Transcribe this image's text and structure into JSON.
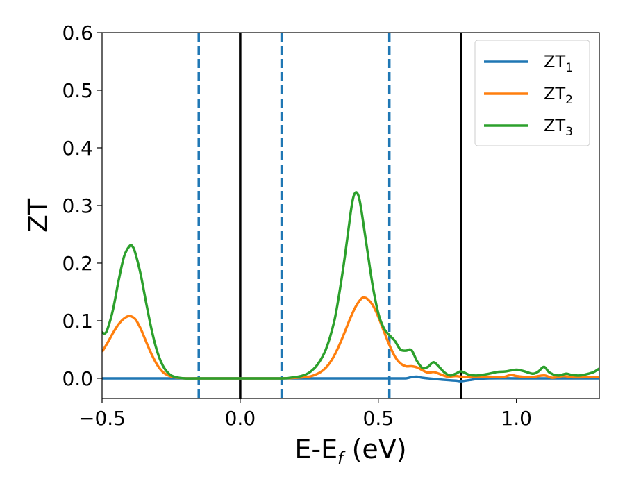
{
  "chart_data": {
    "type": "line",
    "xlabel": {
      "main": "E-E",
      "sub": "f",
      "rest": " (eV)"
    },
    "ylabel": "ZT",
    "xlim": [
      -0.5,
      1.3
    ],
    "ylim": [
      -0.035,
      0.6
    ],
    "x_ticks": [
      -0.5,
      0.0,
      0.5,
      1.0
    ],
    "x_tick_labels": [
      "−0.5",
      "0.0",
      "0.5",
      "1.0"
    ],
    "y_ticks": [
      0.0,
      0.1,
      0.2,
      0.3,
      0.4,
      0.5,
      0.6
    ],
    "y_tick_labels": [
      "0.0",
      "0.1",
      "0.2",
      "0.3",
      "0.4",
      "0.5",
      "0.6"
    ],
    "grid": false,
    "legend_position": "top-right",
    "vertical_lines": [
      {
        "x": -0.15,
        "style": "dashed",
        "color": "#1f77b4"
      },
      {
        "x": 0.0,
        "style": "solid",
        "color": "#000000"
      },
      {
        "x": 0.15,
        "style": "dashed",
        "color": "#1f77b4"
      },
      {
        "x": 0.54,
        "style": "dashed",
        "color": "#1f77b4"
      },
      {
        "x": 0.8,
        "style": "solid",
        "color": "#000000"
      }
    ],
    "series": [
      {
        "name": "ZT",
        "name_sub": "1",
        "color": "#1f77b4",
        "points": [
          [
            -0.5,
            0.0
          ],
          [
            -0.3,
            0.0
          ],
          [
            0.0,
            0.0
          ],
          [
            0.3,
            0.0
          ],
          [
            0.5,
            0.0
          ],
          [
            0.58,
            0.0
          ],
          [
            0.6,
            0.0
          ],
          [
            0.62,
            0.002
          ],
          [
            0.64,
            0.003
          ],
          [
            0.66,
            0.001
          ],
          [
            0.7,
            -0.001
          ],
          [
            0.75,
            -0.003
          ],
          [
            0.78,
            -0.004
          ],
          [
            0.8,
            -0.005
          ],
          [
            0.83,
            -0.003
          ],
          [
            0.86,
            -0.001
          ],
          [
            0.9,
            0.0
          ],
          [
            1.0,
            0.0
          ],
          [
            1.1,
            0.0
          ],
          [
            1.2,
            0.0
          ],
          [
            1.3,
            0.0
          ]
        ]
      },
      {
        "name": "ZT",
        "name_sub": "2",
        "color": "#ff7f0e",
        "points": [
          [
            -0.5,
            0.046
          ],
          [
            -0.48,
            0.062
          ],
          [
            -0.46,
            0.079
          ],
          [
            -0.44,
            0.094
          ],
          [
            -0.42,
            0.104
          ],
          [
            -0.4,
            0.108
          ],
          [
            -0.38,
            0.103
          ],
          [
            -0.36,
            0.086
          ],
          [
            -0.34,
            0.063
          ],
          [
            -0.32,
            0.041
          ],
          [
            -0.3,
            0.023
          ],
          [
            -0.28,
            0.011
          ],
          [
            -0.26,
            0.005
          ],
          [
            -0.24,
            0.002
          ],
          [
            -0.2,
            0.0
          ],
          [
            -0.15,
            0.0
          ],
          [
            0.0,
            0.0
          ],
          [
            0.15,
            0.0
          ],
          [
            0.2,
            0.001
          ],
          [
            0.25,
            0.003
          ],
          [
            0.28,
            0.008
          ],
          [
            0.3,
            0.014
          ],
          [
            0.32,
            0.024
          ],
          [
            0.34,
            0.039
          ],
          [
            0.36,
            0.059
          ],
          [
            0.38,
            0.082
          ],
          [
            0.4,
            0.106
          ],
          [
            0.42,
            0.126
          ],
          [
            0.44,
            0.139
          ],
          [
            0.45,
            0.14
          ],
          [
            0.46,
            0.138
          ],
          [
            0.48,
            0.127
          ],
          [
            0.5,
            0.107
          ],
          [
            0.52,
            0.082
          ],
          [
            0.54,
            0.058
          ],
          [
            0.56,
            0.038
          ],
          [
            0.58,
            0.026
          ],
          [
            0.6,
            0.021
          ],
          [
            0.62,
            0.021
          ],
          [
            0.64,
            0.019
          ],
          [
            0.66,
            0.014
          ],
          [
            0.68,
            0.01
          ],
          [
            0.7,
            0.011
          ],
          [
            0.72,
            0.008
          ],
          [
            0.75,
            0.003
          ],
          [
            0.78,
            0.004
          ],
          [
            0.8,
            0.003
          ],
          [
            0.83,
            0.002
          ],
          [
            0.86,
            0.003
          ],
          [
            0.9,
            0.003
          ],
          [
            0.95,
            0.002
          ],
          [
            0.98,
            0.006
          ],
          [
            1.0,
            0.004
          ],
          [
            1.05,
            0.002
          ],
          [
            1.1,
            0.005
          ],
          [
            1.13,
            0.001
          ],
          [
            1.17,
            0.004
          ],
          [
            1.2,
            0.002
          ],
          [
            1.25,
            0.002
          ],
          [
            1.3,
            0.002
          ]
        ]
      },
      {
        "name": "ZT",
        "name_sub": "3",
        "color": "#2ca02c",
        "points": [
          [
            -0.5,
            0.08
          ],
          [
            -0.49,
            0.078
          ],
          [
            -0.48,
            0.086
          ],
          [
            -0.46,
            0.12
          ],
          [
            -0.44,
            0.17
          ],
          [
            -0.42,
            0.212
          ],
          [
            -0.4,
            0.23
          ],
          [
            -0.39,
            0.229
          ],
          [
            -0.38,
            0.218
          ],
          [
            -0.36,
            0.18
          ],
          [
            -0.34,
            0.13
          ],
          [
            -0.32,
            0.083
          ],
          [
            -0.3,
            0.046
          ],
          [
            -0.28,
            0.022
          ],
          [
            -0.26,
            0.009
          ],
          [
            -0.24,
            0.003
          ],
          [
            -0.2,
            0.0
          ],
          [
            -0.15,
            0.0
          ],
          [
            0.0,
            0.0
          ],
          [
            0.15,
            0.0
          ],
          [
            0.18,
            0.001
          ],
          [
            0.22,
            0.004
          ],
          [
            0.25,
            0.01
          ],
          [
            0.28,
            0.024
          ],
          [
            0.31,
            0.05
          ],
          [
            0.34,
            0.098
          ],
          [
            0.36,
            0.151
          ],
          [
            0.38,
            0.215
          ],
          [
            0.4,
            0.288
          ],
          [
            0.41,
            0.315
          ],
          [
            0.42,
            0.323
          ],
          [
            0.43,
            0.314
          ],
          [
            0.44,
            0.288
          ],
          [
            0.46,
            0.223
          ],
          [
            0.48,
            0.16
          ],
          [
            0.5,
            0.113
          ],
          [
            0.52,
            0.087
          ],
          [
            0.54,
            0.075
          ],
          [
            0.56,
            0.065
          ],
          [
            0.58,
            0.05
          ],
          [
            0.6,
            0.048
          ],
          [
            0.62,
            0.049
          ],
          [
            0.64,
            0.03
          ],
          [
            0.66,
            0.018
          ],
          [
            0.68,
            0.02
          ],
          [
            0.7,
            0.028
          ],
          [
            0.72,
            0.02
          ],
          [
            0.74,
            0.01
          ],
          [
            0.76,
            0.005
          ],
          [
            0.78,
            0.008
          ],
          [
            0.8,
            0.012
          ],
          [
            0.83,
            0.006
          ],
          [
            0.86,
            0.005
          ],
          [
            0.9,
            0.008
          ],
          [
            0.93,
            0.011
          ],
          [
            0.96,
            0.012
          ],
          [
            1.0,
            0.015
          ],
          [
            1.03,
            0.012
          ],
          [
            1.06,
            0.008
          ],
          [
            1.08,
            0.012
          ],
          [
            1.1,
            0.02
          ],
          [
            1.12,
            0.01
          ],
          [
            1.15,
            0.005
          ],
          [
            1.18,
            0.008
          ],
          [
            1.2,
            0.006
          ],
          [
            1.23,
            0.005
          ],
          [
            1.26,
            0.008
          ],
          [
            1.28,
            0.011
          ],
          [
            1.3,
            0.017
          ]
        ]
      }
    ]
  }
}
